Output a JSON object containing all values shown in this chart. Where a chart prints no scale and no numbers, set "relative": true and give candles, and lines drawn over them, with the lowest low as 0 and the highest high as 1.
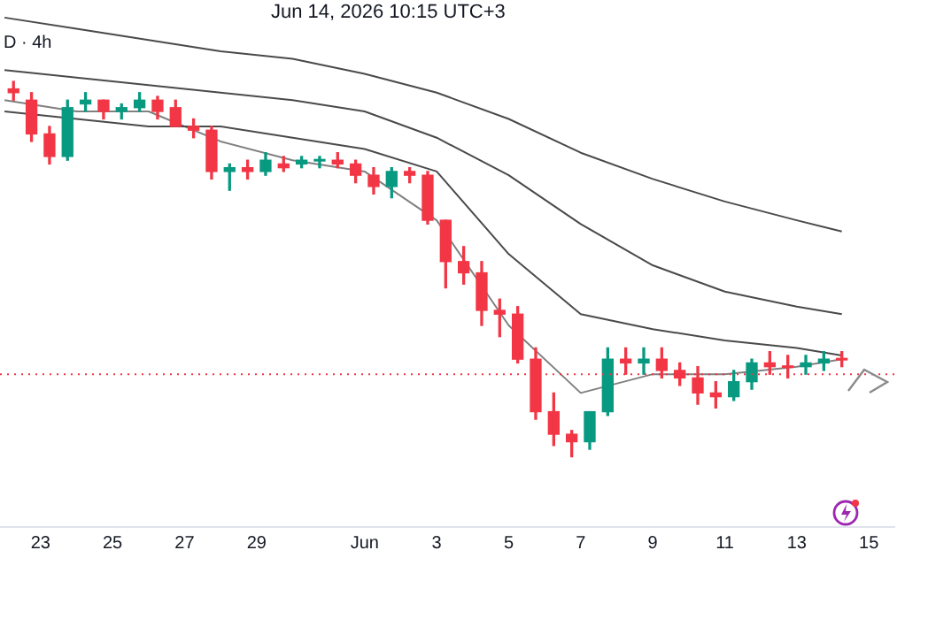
{
  "chart_data": {
    "type": "candlestick",
    "subtitle": "D · 4h",
    "annotations": [
      "Jun 14, 2026 10:15 UTC+3"
    ],
    "relative": true,
    "legend": false,
    "marker": "none",
    "x": [
      "2026-05-22T06:00",
      "2026-05-22T18:00",
      "2026-05-23T06:00",
      "2026-05-23T18:00",
      "2026-05-24T06:00",
      "2026-05-24T18:00",
      "2026-05-25T06:00",
      "2026-05-25T18:00",
      "2026-05-26T06:00",
      "2026-05-26T18:00",
      "2026-05-27T06:00",
      "2026-05-27T18:00",
      "2026-05-28T06:00",
      "2026-05-28T18:00",
      "2026-05-29T06:00",
      "2026-05-29T18:00",
      "2026-05-30T06:00",
      "2026-05-30T18:00",
      "2026-05-31T06:00",
      "2026-05-31T18:00",
      "2026-06-01T06:00",
      "2026-06-01T18:00",
      "2026-06-02T06:00",
      "2026-06-02T18:00",
      "2026-06-03T06:00",
      "2026-06-03T18:00",
      "2026-06-04T06:00",
      "2026-06-04T18:00",
      "2026-06-05T06:00",
      "2026-06-05T18:00",
      "2026-06-06T06:00",
      "2026-06-06T18:00",
      "2026-06-07T06:00",
      "2026-06-07T18:00",
      "2026-06-08T06:00",
      "2026-06-08T18:00",
      "2026-06-09T06:00",
      "2026-06-09T18:00",
      "2026-06-10T06:00",
      "2026-06-10T18:00",
      "2026-06-11T06:00",
      "2026-06-11T18:00",
      "2026-06-12T06:00",
      "2026-06-12T18:00",
      "2026-06-13T06:00",
      "2026-06-13T18:00",
      "2026-06-14T06:00"
    ],
    "ohlc": [
      [
        0.98,
        1,
        0.95,
        0.97
      ],
      [
        0.95,
        0.97,
        0.84,
        0.86
      ],
      [
        0.86,
        0.88,
        0.78,
        0.8
      ],
      [
        0.8,
        0.95,
        0.79,
        0.93
      ],
      [
        0.94,
        0.97,
        0.92,
        0.95
      ],
      [
        0.95,
        0.95,
        0.9,
        0.92
      ],
      [
        0.92,
        0.94,
        0.9,
        0.93
      ],
      [
        0.93,
        0.97,
        0.92,
        0.95
      ],
      [
        0.95,
        0.96,
        0.9,
        0.92
      ],
      [
        0.93,
        0.95,
        0.88,
        0.88
      ],
      [
        0.88,
        0.9,
        0.85,
        0.87
      ],
      [
        0.87,
        0.88,
        0.74,
        0.76
      ],
      [
        0.76,
        0.78,
        0.71,
        0.77
      ],
      [
        0.77,
        0.79,
        0.74,
        0.76
      ],
      [
        0.76,
        0.81,
        0.75,
        0.79
      ],
      [
        0.78,
        0.8,
        0.76,
        0.77
      ],
      [
        0.78,
        0.8,
        0.77,
        0.79
      ],
      [
        0.79,
        0.8,
        0.77,
        0.79
      ],
      [
        0.79,
        0.81,
        0.77,
        0.78
      ],
      [
        0.78,
        0.79,
        0.73,
        0.75
      ],
      [
        0.75,
        0.77,
        0.7,
        0.72
      ],
      [
        0.72,
        0.77,
        0.69,
        0.76
      ],
      [
        0.76,
        0.77,
        0.73,
        0.75
      ],
      [
        0.75,
        0.76,
        0.62,
        0.63
      ],
      [
        0.63,
        0.63,
        0.45,
        0.52
      ],
      [
        0.52,
        0.56,
        0.46,
        0.49
      ],
      [
        0.49,
        0.52,
        0.35,
        0.39
      ],
      [
        0.39,
        0.42,
        0.32,
        0.38
      ],
      [
        0.38,
        0.4,
        0.25,
        0.26
      ],
      [
        0.26,
        0.29,
        0.1,
        0.12
      ],
      [
        0.12,
        0.17,
        0.03,
        0.06
      ],
      [
        0.06,
        0.07,
        0,
        0.04
      ],
      [
        0.04,
        0.12,
        0.02,
        0.12
      ],
      [
        0.12,
        0.29,
        0.11,
        0.26
      ],
      [
        0.26,
        0.29,
        0.22,
        0.25
      ],
      [
        0.25,
        0.29,
        0.22,
        0.26
      ],
      [
        0.26,
        0.29,
        0.21,
        0.23
      ],
      [
        0.23,
        0.25,
        0.19,
        0.21
      ],
      [
        0.21,
        0.24,
        0.14,
        0.17
      ],
      [
        0.17,
        0.2,
        0.13,
        0.16
      ],
      [
        0.16,
        0.23,
        0.15,
        0.2
      ],
      [
        0.2,
        0.26,
        0.18,
        0.25
      ],
      [
        0.25,
        0.28,
        0.22,
        0.24
      ],
      [
        0.24,
        0.27,
        0.21,
        0.24
      ],
      [
        0.24,
        0.27,
        0.22,
        0.25
      ],
      [
        0.25,
        0.28,
        0.23,
        0.26
      ],
      [
        0.26,
        0.28,
        0.24,
        0.26
      ]
    ],
    "colors": [
      "#f23645",
      "#f23645",
      "#f23645",
      "#089981",
      "#089981",
      "#f23645",
      "#089981",
      "#089981",
      "#f23645",
      "#f23645",
      "#f23645",
      "#f23645",
      "#089981",
      "#f23645",
      "#089981",
      "#f23645",
      "#089981",
      "#089981",
      "#f23645",
      "#f23645",
      "#f23645",
      "#089981",
      "#f23645",
      "#f23645",
      "#f23645",
      "#f23645",
      "#f23645",
      "#f23645",
      "#f23645",
      "#f23645",
      "#f23645",
      "#f23645",
      "#089981",
      "#089981",
      "#f23645",
      "#089981",
      "#f23645",
      "#f23645",
      "#f23645",
      "#f23645",
      "#089981",
      "#089981",
      "#f23645",
      "#f23645",
      "#089981",
      "#089981",
      "#f23645"
    ],
    "series": [
      {
        "type": "line",
        "color": "#4a4a4a",
        "x": [
          "2026-05-22",
          "2026-05-24",
          "2026-05-26",
          "2026-05-28",
          "2026-05-30",
          "2026-06-01",
          "2026-06-03",
          "2026-06-05",
          "2026-06-07",
          "2026-06-09",
          "2026-06-11",
          "2026-06-13",
          "2026-06-14T06:00"
        ],
        "values": [
          1.17,
          1.14,
          1.11,
          1.08,
          1.06,
          1.02,
          0.97,
          0.9,
          0.81,
          0.74,
          0.68,
          0.63,
          0.6
        ]
      },
      {
        "type": "line",
        "color": "#4a4a4a",
        "x": [
          "2026-05-22",
          "2026-05-24",
          "2026-05-26",
          "2026-05-28",
          "2026-05-30",
          "2026-06-01",
          "2026-06-03",
          "2026-06-05",
          "2026-06-07",
          "2026-06-09",
          "2026-06-11",
          "2026-06-13",
          "2026-06-14T06:00"
        ],
        "values": [
          1.03,
          1.01,
          0.99,
          0.97,
          0.95,
          0.92,
          0.85,
          0.75,
          0.62,
          0.51,
          0.44,
          0.4,
          0.38
        ]
      },
      {
        "type": "line",
        "color": "#4a4a4a",
        "x": [
          "2026-05-22",
          "2026-05-24",
          "2026-05-26",
          "2026-05-28",
          "2026-05-30",
          "2026-06-01",
          "2026-06-03",
          "2026-06-05",
          "2026-06-07",
          "2026-06-09",
          "2026-06-11",
          "2026-06-13",
          "2026-06-14T06:00"
        ],
        "values": [
          0.92,
          0.9,
          0.88,
          0.88,
          0.85,
          0.82,
          0.76,
          0.54,
          0.38,
          0.34,
          0.31,
          0.29,
          0.27
        ]
      },
      {
        "type": "line",
        "color": "#808080",
        "x": [
          "2026-05-22",
          "2026-05-24",
          "2026-05-26",
          "2026-05-28",
          "2026-05-30",
          "2026-06-01",
          "2026-06-03",
          "2026-06-05",
          "2026-06-07",
          "2026-06-09",
          "2026-06-11",
          "2026-06-13",
          "2026-06-14T06:00"
        ],
        "values": [
          0.95,
          0.92,
          0.92,
          0.84,
          0.79,
          0.76,
          0.63,
          0.35,
          0.17,
          0.22,
          0.22,
          0.24,
          0.26
        ]
      }
    ],
    "ref_lines": [
      {
        "axis": "y",
        "value": 0.22,
        "color": "#f23645",
        "line_style": "dotted"
      }
    ],
    "xlim": [
      "2026-05-21T21:00",
      "2026-06-15T17:00"
    ],
    "xticks": [
      {
        "value": "2026-05-23",
        "label": "23"
      },
      {
        "value": "2026-05-25",
        "label": "25"
      },
      {
        "value": "2026-05-27",
        "label": "27"
      },
      {
        "value": "2026-05-29",
        "label": "29"
      },
      {
        "value": "2026-06-01",
        "label": "Jun"
      },
      {
        "value": "2026-06-03",
        "label": "3"
      },
      {
        "value": "2026-06-05",
        "label": "5"
      },
      {
        "value": "2026-06-07",
        "label": "7"
      },
      {
        "value": "2026-06-09",
        "label": "9"
      },
      {
        "value": "2026-06-11",
        "label": "11"
      },
      {
        "value": "2026-06-13",
        "label": "13"
      },
      {
        "value": "2026-06-15",
        "label": "15"
      }
    ]
  }
}
